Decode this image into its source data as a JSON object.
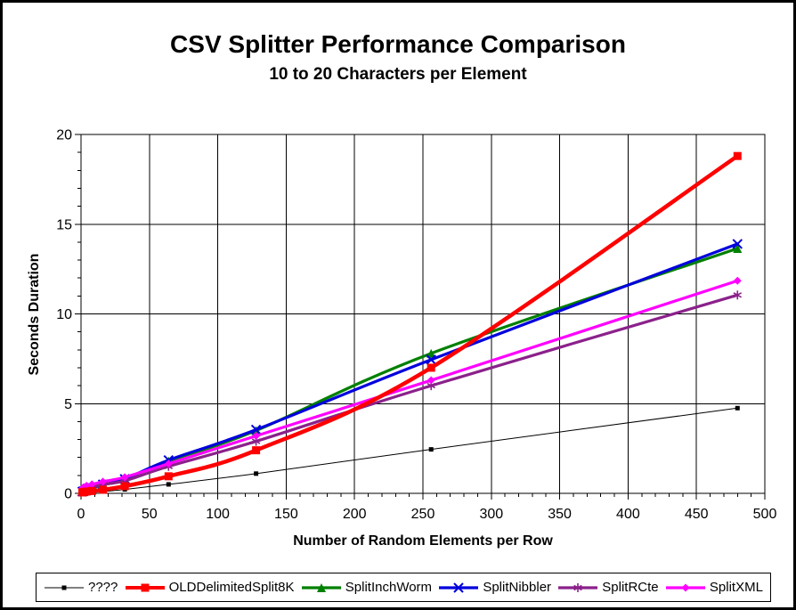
{
  "page": {
    "background": "#FFFFFF",
    "frame_border_color": "#000000"
  },
  "chart_data": {
    "type": "line",
    "title": "CSV Splitter Performance Comparison",
    "subtitle": "10 to 20 Characters per Element",
    "xlabel": "Number of Random Elements per Row",
    "ylabel": "Seconds Duration",
    "xlim": [
      0,
      500
    ],
    "ylim": [
      0,
      20
    ],
    "x_major_ticks": [
      0,
      50,
      100,
      150,
      200,
      250,
      300,
      350,
      400,
      450,
      500
    ],
    "x_minor_step": 10,
    "y_major_ticks": [
      0,
      5,
      10,
      15,
      20
    ],
    "y_minor_step": 1,
    "grid": "major",
    "grid_color": "#000000",
    "axis_color": "#000000",
    "legend_position": "bottom",
    "x": [
      1,
      2,
      4,
      8,
      16,
      32,
      64,
      128,
      256,
      480
    ],
    "series": [
      {
        "name": "????",
        "color": "#000000",
        "marker": "square",
        "marker_size": 5,
        "line_width": 1,
        "values": [
          0.02,
          0.03,
          0.05,
          0.06,
          0.1,
          0.22,
          0.5,
          1.1,
          2.45,
          4.75
        ]
      },
      {
        "name": "OLDDelimitedSplit8K",
        "color": "#FF0000",
        "marker": "square",
        "marker_size": 9,
        "line_width": 4.5,
        "values": [
          0.05,
          0.07,
          0.1,
          0.13,
          0.2,
          0.4,
          0.95,
          2.4,
          7.0,
          18.8
        ]
      },
      {
        "name": "SplitInchWorm",
        "color": "#008000",
        "marker": "triangle",
        "marker_size": 10,
        "line_width": 3.2,
        "values": [
          0.08,
          0.1,
          0.15,
          0.27,
          0.48,
          0.75,
          1.8,
          3.5,
          7.8,
          13.65
        ]
      },
      {
        "name": "SplitNibbler",
        "color": "#0000DD",
        "marker": "x",
        "marker_size": 10,
        "line_width": 3.2,
        "values": [
          0.1,
          0.12,
          0.17,
          0.3,
          0.5,
          0.8,
          1.85,
          3.55,
          7.45,
          13.9
        ]
      },
      {
        "name": "SplitRCte",
        "color": "#8B218B",
        "marker": "asterisk",
        "marker_size": 10,
        "line_width": 3.2,
        "values": [
          0.12,
          0.15,
          0.2,
          0.32,
          0.5,
          0.7,
          1.5,
          2.9,
          6.0,
          11.05
        ]
      },
      {
        "name": "SplitXML",
        "color": "#FF00FF",
        "marker": "diamond",
        "marker_size": 9,
        "line_width": 3.2,
        "values": [
          0.28,
          0.35,
          0.42,
          0.5,
          0.65,
          0.9,
          1.65,
          3.2,
          6.3,
          11.85
        ]
      }
    ]
  }
}
